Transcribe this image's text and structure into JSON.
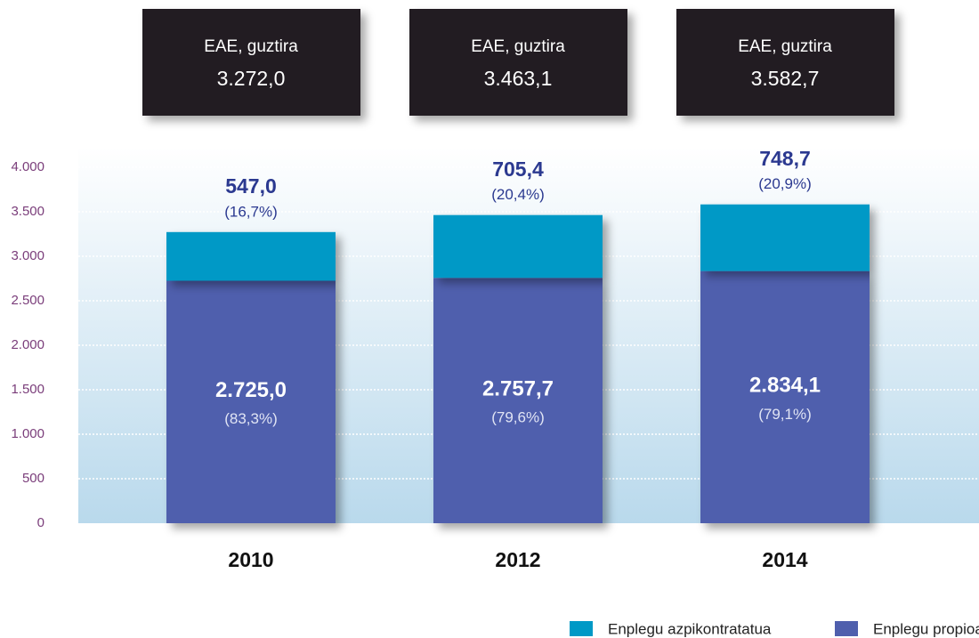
{
  "chart_data": {
    "type": "stacked_bar",
    "categories": [
      "2010",
      "2012",
      "2014"
    ],
    "series": [
      {
        "name": "Enplegu azpikontratatua",
        "color": "#0099c6",
        "values": [
          547.0,
          705.4,
          748.7
        ],
        "value_labels": [
          "547,0",
          "705,4",
          "748,7"
        ],
        "shares": [
          16.7,
          20.4,
          20.9
        ],
        "share_labels": [
          "(16,7%)",
          "(20,4%)",
          "(20,9%)"
        ]
      },
      {
        "name": "Enplegu propioa",
        "color": "#4f5fad",
        "values": [
          2725.0,
          2757.7,
          2834.1
        ],
        "value_labels": [
          "2.725,0",
          "2.757,7",
          "2.834,1"
        ],
        "shares": [
          83.3,
          79.6,
          79.1
        ],
        "share_labels": [
          "(83,3%)",
          "(79,6%)",
          "(79,1%)"
        ]
      }
    ],
    "totals": {
      "label": "EAE, guztira",
      "values": [
        3272.0,
        3463.1,
        3582.7
      ],
      "value_labels": [
        "3.272,0",
        "3.463,1",
        "3.582,7"
      ]
    },
    "ylim": [
      0,
      4000
    ],
    "yticks": [
      {
        "value": 0,
        "label": "0"
      },
      {
        "value": 500,
        "label": "500"
      },
      {
        "value": 1000,
        "label": "1.000"
      },
      {
        "value": 1500,
        "label": "1.500"
      },
      {
        "value": 2000,
        "label": "2.000"
      },
      {
        "value": 2500,
        "label": "2.500"
      },
      {
        "value": 3000,
        "label": "3.000"
      },
      {
        "value": 3500,
        "label": "3.500"
      },
      {
        "value": 4000,
        "label": "4.000"
      }
    ],
    "grid": true
  }
}
